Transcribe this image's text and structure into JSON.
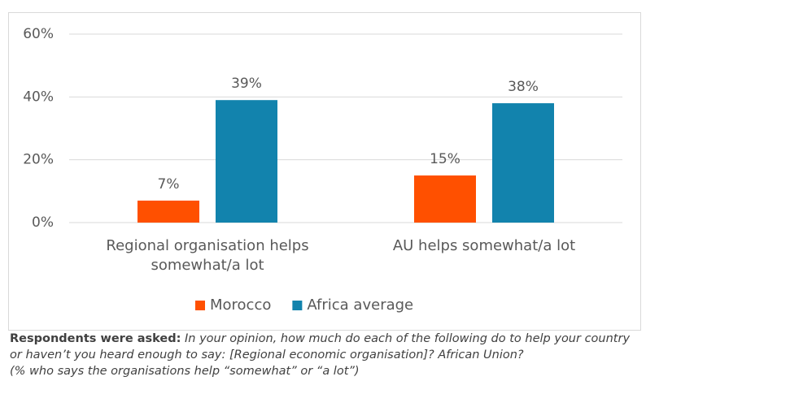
{
  "chart_data": {
    "type": "bar",
    "categories": [
      "Regional organisation helps somewhat/a lot",
      "AU helps somewhat/a lot"
    ],
    "series": [
      {
        "name": "Morocco",
        "color": "#ff5000",
        "values": [
          7,
          15
        ],
        "value_labels": [
          "7%",
          "15%"
        ]
      },
      {
        "name": "Africa average",
        "color": "#1283ad",
        "values": [
          39,
          38
        ],
        "value_labels": [
          "39%",
          "38%"
        ]
      }
    ],
    "ylim": [
      0,
      60
    ],
    "yticks": [
      {
        "value": 0,
        "label": "0%"
      },
      {
        "value": 20,
        "label": "20%"
      },
      {
        "value": 40,
        "label": "40%"
      },
      {
        "value": 60,
        "label": "60%"
      }
    ],
    "grid": true,
    "legend": "bottom"
  },
  "footnote": {
    "lead": "Respondents were asked:",
    "lines": [
      "In your opinion, how much do each of the following do to help your country",
      "or haven’t you heard enough to say: [Regional economic organisation]? African Union?",
      "(% who says the organisations help “somewhat” or “a lot”)"
    ]
  }
}
